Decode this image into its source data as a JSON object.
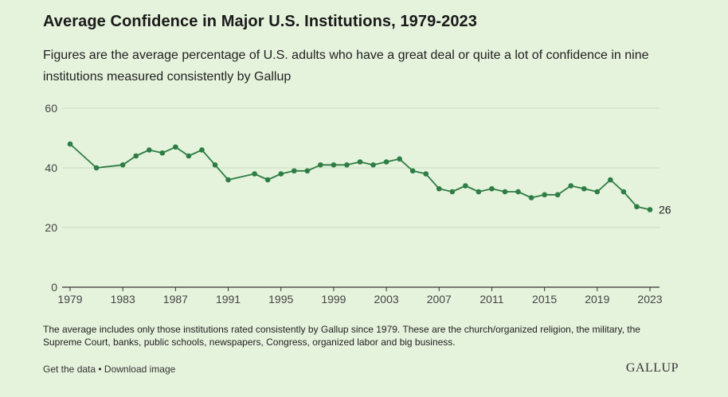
{
  "chart_data": {
    "type": "line",
    "title": "Average Confidence in Major U.S. Institutions, 1979-2023",
    "subtitle": "Figures are the average percentage of U.S. adults who have a great deal or quite a lot of confidence in nine institutions measured consistently by Gallup",
    "x": [
      1979,
      1981,
      1983,
      1984,
      1985,
      1986,
      1987,
      1988,
      1989,
      1990,
      1991,
      1993,
      1994,
      1995,
      1996,
      1997,
      1998,
      1999,
      2000,
      2001,
      2002,
      2003,
      2004,
      2005,
      2006,
      2007,
      2008,
      2009,
      2010,
      2011,
      2012,
      2013,
      2014,
      2015,
      2016,
      2017,
      2018,
      2019,
      2020,
      2021,
      2022,
      2023
    ],
    "series": [
      {
        "values": [
          48,
          40,
          41,
          44,
          46,
          45,
          47,
          44,
          46,
          41,
          36,
          38,
          36,
          38,
          39,
          39,
          41,
          41,
          41,
          42,
          41,
          42,
          43,
          39,
          38,
          33,
          32,
          34,
          32,
          33,
          32,
          32,
          30,
          31,
          31,
          34,
          33,
          32,
          36,
          32,
          27,
          26
        ]
      }
    ],
    "xticks": [
      1979,
      1983,
      1987,
      1991,
      1995,
      1999,
      2003,
      2007,
      2011,
      2015,
      2019,
      2023
    ],
    "yticks": [
      0,
      20,
      40,
      60
    ],
    "xlim": [
      1979,
      2023
    ],
    "ylim": [
      0,
      60
    ],
    "end_label": "26",
    "grid": "horizontal",
    "line_color": "#2e7d44",
    "grid_color": "#c9dcc0",
    "axis_color": "#333333"
  },
  "note": "The average includes only those institutions rated consistently by Gallup since 1979. These are the church/organized religion, the military, the Supreme Court, banks, public schools, newspapers, Congress, organized labor and big business.",
  "footer": {
    "get_data": "Get the data",
    "separator": " • ",
    "download": "Download image",
    "logo": "GALLUP"
  }
}
